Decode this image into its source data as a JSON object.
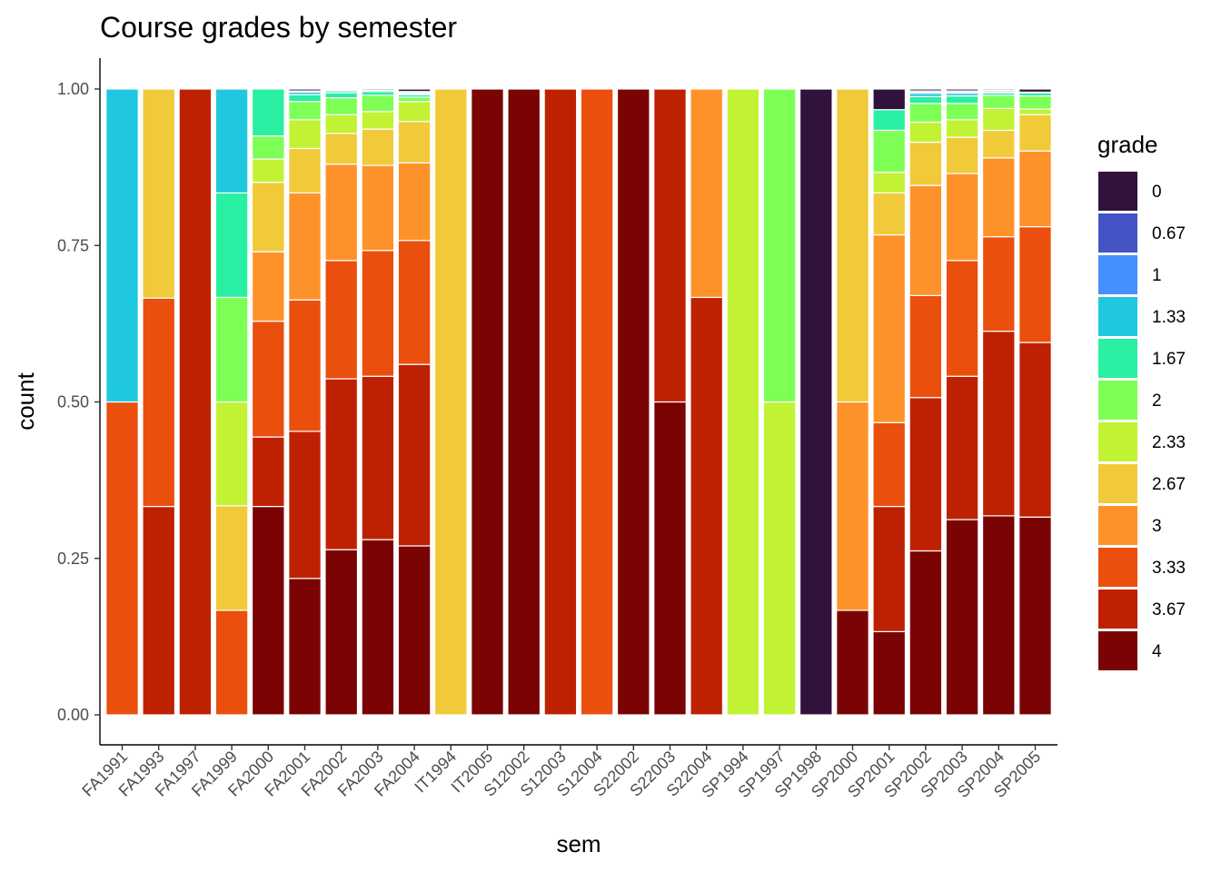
{
  "chart_data": {
    "type": "bar",
    "stacked": true,
    "normalized": true,
    "title": "Course grades by semester",
    "xlabel": "sem",
    "ylabel": "count",
    "ylim": [
      0,
      1
    ],
    "yticks": [
      "0.00",
      "0.25",
      "0.50",
      "0.75",
      "1.00"
    ],
    "yticks_values": [
      0,
      0.25,
      0.5,
      0.75,
      1.0
    ],
    "legend_title": "grade",
    "legend_position": "right",
    "grades": [
      "0",
      "0.67",
      "1",
      "1.33",
      "1.67",
      "2",
      "2.33",
      "2.67",
      "3",
      "3.33",
      "3.67",
      "4"
    ],
    "colors": [
      "#30123B",
      "#4454C4",
      "#4490FE",
      "#1FC8DE",
      "#29EFA2",
      "#7DFF56",
      "#C1F334",
      "#F1CA3A",
      "#FE922A",
      "#EA4F0D",
      "#BE2102",
      "#7A0403"
    ],
    "categories": [
      "FA1991",
      "FA1993",
      "FA1997",
      "FA1999",
      "FA2000",
      "FA2001",
      "FA2002",
      "FA2003",
      "FA2004",
      "IT1994",
      "IT2005",
      "S12002",
      "S12003",
      "S12004",
      "S22002",
      "S22003",
      "S22004",
      "SP1994",
      "SP1997",
      "SP1998",
      "SP2000",
      "SP2001",
      "SP2002",
      "SP2003",
      "SP2004",
      "SP2005"
    ],
    "stacks": [
      {
        "sem": "FA1991",
        "segments": [
          {
            "grade": "3.33",
            "value": 0.5
          },
          {
            "grade": "1.33",
            "value": 0.5
          }
        ]
      },
      {
        "sem": "FA1993",
        "segments": [
          {
            "grade": "3.67",
            "value": 0.333
          },
          {
            "grade": "3.33",
            "value": 0.333
          },
          {
            "grade": "2.67",
            "value": 0.334
          }
        ]
      },
      {
        "sem": "FA1997",
        "segments": [
          {
            "grade": "3.67",
            "value": 1.0
          }
        ]
      },
      {
        "sem": "FA1999",
        "segments": [
          {
            "grade": "3.33",
            "value": 0.167
          },
          {
            "grade": "2.67",
            "value": 0.167
          },
          {
            "grade": "2.33",
            "value": 0.166
          },
          {
            "grade": "2",
            "value": 0.167
          },
          {
            "grade": "1.67",
            "value": 0.167
          },
          {
            "grade": "1.33",
            "value": 0.166
          }
        ]
      },
      {
        "sem": "FA2000",
        "segments": [
          {
            "grade": "4",
            "value": 0.333
          },
          {
            "grade": "3.67",
            "value": 0.111
          },
          {
            "grade": "3.33",
            "value": 0.185
          },
          {
            "grade": "3",
            "value": 0.111
          },
          {
            "grade": "2.67",
            "value": 0.111
          },
          {
            "grade": "2.33",
            "value": 0.037
          },
          {
            "grade": "2",
            "value": 0.037
          },
          {
            "grade": "1.67",
            "value": 0.075
          }
        ]
      },
      {
        "sem": "FA2001",
        "segments": [
          {
            "grade": "4",
            "value": 0.218
          },
          {
            "grade": "3.67",
            "value": 0.235
          },
          {
            "grade": "3.33",
            "value": 0.21
          },
          {
            "grade": "3",
            "value": 0.171
          },
          {
            "grade": "2.67",
            "value": 0.071
          },
          {
            "grade": "2.33",
            "value": 0.046
          },
          {
            "grade": "2",
            "value": 0.029
          },
          {
            "grade": "1.67",
            "value": 0.011
          },
          {
            "grade": "1.33",
            "value": 0.004
          },
          {
            "grade": "0.67",
            "value": 0.002
          },
          {
            "grade": "0",
            "value": 0.003
          }
        ]
      },
      {
        "sem": "FA2002",
        "segments": [
          {
            "grade": "4",
            "value": 0.264
          },
          {
            "grade": "3.67",
            "value": 0.273
          },
          {
            "grade": "3.33",
            "value": 0.189
          },
          {
            "grade": "3",
            "value": 0.154
          },
          {
            "grade": "2.67",
            "value": 0.049
          },
          {
            "grade": "2.33",
            "value": 0.03
          },
          {
            "grade": "2",
            "value": 0.027
          },
          {
            "grade": "1.67",
            "value": 0.008
          },
          {
            "grade": "1.33",
            "value": 0.003
          },
          {
            "grade": "0.67",
            "value": 0.002
          },
          {
            "grade": "0",
            "value": 0.001
          }
        ]
      },
      {
        "sem": "FA2003",
        "segments": [
          {
            "grade": "4",
            "value": 0.28
          },
          {
            "grade": "3.67",
            "value": 0.261
          },
          {
            "grade": "3.33",
            "value": 0.201
          },
          {
            "grade": "3",
            "value": 0.136
          },
          {
            "grade": "2.67",
            "value": 0.058
          },
          {
            "grade": "2.33",
            "value": 0.028
          },
          {
            "grade": "2",
            "value": 0.026
          },
          {
            "grade": "1.67",
            "value": 0.006
          },
          {
            "grade": "1.33",
            "value": 0.002
          },
          {
            "grade": "0",
            "value": 0.002
          }
        ]
      },
      {
        "sem": "FA2004",
        "segments": [
          {
            "grade": "4",
            "value": 0.27
          },
          {
            "grade": "3.67",
            "value": 0.29
          },
          {
            "grade": "3.33",
            "value": 0.198
          },
          {
            "grade": "3",
            "value": 0.124
          },
          {
            "grade": "2.67",
            "value": 0.066
          },
          {
            "grade": "2.33",
            "value": 0.032
          },
          {
            "grade": "2",
            "value": 0.007
          },
          {
            "grade": "1.67",
            "value": 0.004
          },
          {
            "grade": "1.33",
            "value": 0.002
          },
          {
            "grade": "1",
            "value": 0.001
          },
          {
            "grade": "0.67",
            "value": 0.002
          },
          {
            "grade": "0",
            "value": 0.004
          }
        ]
      },
      {
        "sem": "IT1994",
        "segments": [
          {
            "grade": "2.67",
            "value": 1.0
          }
        ]
      },
      {
        "sem": "IT2005",
        "segments": [
          {
            "grade": "4",
            "value": 1.0
          }
        ]
      },
      {
        "sem": "S12002",
        "segments": [
          {
            "grade": "4",
            "value": 1.0
          }
        ]
      },
      {
        "sem": "S12003",
        "segments": [
          {
            "grade": "3.67",
            "value": 1.0
          }
        ]
      },
      {
        "sem": "S12004",
        "segments": [
          {
            "grade": "3.33",
            "value": 1.0
          }
        ]
      },
      {
        "sem": "S22002",
        "segments": [
          {
            "grade": "4",
            "value": 1.0
          }
        ]
      },
      {
        "sem": "S22003",
        "segments": [
          {
            "grade": "4",
            "value": 0.5
          },
          {
            "grade": "3.67",
            "value": 0.5
          }
        ]
      },
      {
        "sem": "S22004",
        "segments": [
          {
            "grade": "3.67",
            "value": 0.667
          },
          {
            "grade": "3",
            "value": 0.333
          }
        ]
      },
      {
        "sem": "SP1994",
        "segments": [
          {
            "grade": "2.33",
            "value": 1.0
          }
        ]
      },
      {
        "sem": "SP1997",
        "segments": [
          {
            "grade": "2.33",
            "value": 0.5
          },
          {
            "grade": "2",
            "value": 0.5
          }
        ]
      },
      {
        "sem": "SP1998",
        "segments": [
          {
            "grade": "0",
            "value": 1.0
          }
        ]
      },
      {
        "sem": "SP2000",
        "segments": [
          {
            "grade": "4",
            "value": 0.167
          },
          {
            "grade": "3",
            "value": 0.333
          },
          {
            "grade": "2.67",
            "value": 0.5
          }
        ]
      },
      {
        "sem": "SP2001",
        "segments": [
          {
            "grade": "4",
            "value": 0.133
          },
          {
            "grade": "3.67",
            "value": 0.2
          },
          {
            "grade": "3.33",
            "value": 0.134
          },
          {
            "grade": "3",
            "value": 0.3
          },
          {
            "grade": "2.67",
            "value": 0.067
          },
          {
            "grade": "2.33",
            "value": 0.033
          },
          {
            "grade": "2",
            "value": 0.067
          },
          {
            "grade": "1.67",
            "value": 0.033
          },
          {
            "grade": "0",
            "value": 0.033
          }
        ]
      },
      {
        "sem": "SP2002",
        "segments": [
          {
            "grade": "4",
            "value": 0.262
          },
          {
            "grade": "3.67",
            "value": 0.245
          },
          {
            "grade": "3.33",
            "value": 0.163
          },
          {
            "grade": "3",
            "value": 0.176
          },
          {
            "grade": "2.67",
            "value": 0.069
          },
          {
            "grade": "2.33",
            "value": 0.032
          },
          {
            "grade": "2",
            "value": 0.03
          },
          {
            "grade": "1.67",
            "value": 0.011
          },
          {
            "grade": "1.33",
            "value": 0.005
          },
          {
            "grade": "1",
            "value": 0.002
          },
          {
            "grade": "0.67",
            "value": 0.002
          },
          {
            "grade": "0",
            "value": 0.003
          }
        ]
      },
      {
        "sem": "SP2003",
        "segments": [
          {
            "grade": "4",
            "value": 0.312
          },
          {
            "grade": "3.67",
            "value": 0.229
          },
          {
            "grade": "3.33",
            "value": 0.185
          },
          {
            "grade": "3",
            "value": 0.139
          },
          {
            "grade": "2.67",
            "value": 0.058
          },
          {
            "grade": "2.33",
            "value": 0.028
          },
          {
            "grade": "2",
            "value": 0.026
          },
          {
            "grade": "1.67",
            "value": 0.012
          },
          {
            "grade": "1.33",
            "value": 0.004
          },
          {
            "grade": "1",
            "value": 0.002
          },
          {
            "grade": "0.67",
            "value": 0.002
          },
          {
            "grade": "0",
            "value": 0.003
          }
        ]
      },
      {
        "sem": "SP2004",
        "segments": [
          {
            "grade": "4",
            "value": 0.318
          },
          {
            "grade": "3.67",
            "value": 0.295
          },
          {
            "grade": "3.33",
            "value": 0.151
          },
          {
            "grade": "3",
            "value": 0.126
          },
          {
            "grade": "2.67",
            "value": 0.044
          },
          {
            "grade": "2.33",
            "value": 0.035
          },
          {
            "grade": "2",
            "value": 0.021
          },
          {
            "grade": "1.67",
            "value": 0.004
          },
          {
            "grade": "1.33",
            "value": 0.002
          },
          {
            "grade": "0.67",
            "value": 0.002
          },
          {
            "grade": "0",
            "value": 0.002
          }
        ]
      },
      {
        "sem": "SP2005",
        "segments": [
          {
            "grade": "4",
            "value": 0.316
          },
          {
            "grade": "3.67",
            "value": 0.279
          },
          {
            "grade": "3.33",
            "value": 0.185
          },
          {
            "grade": "3",
            "value": 0.121
          },
          {
            "grade": "2.67",
            "value": 0.058
          },
          {
            "grade": "2.33",
            "value": 0.009
          },
          {
            "grade": "2",
            "value": 0.021
          },
          {
            "grade": "1.67",
            "value": 0.005
          },
          {
            "grade": "1.33",
            "value": 0.001
          },
          {
            "grade": "0",
            "value": 0.005
          }
        ]
      }
    ]
  }
}
